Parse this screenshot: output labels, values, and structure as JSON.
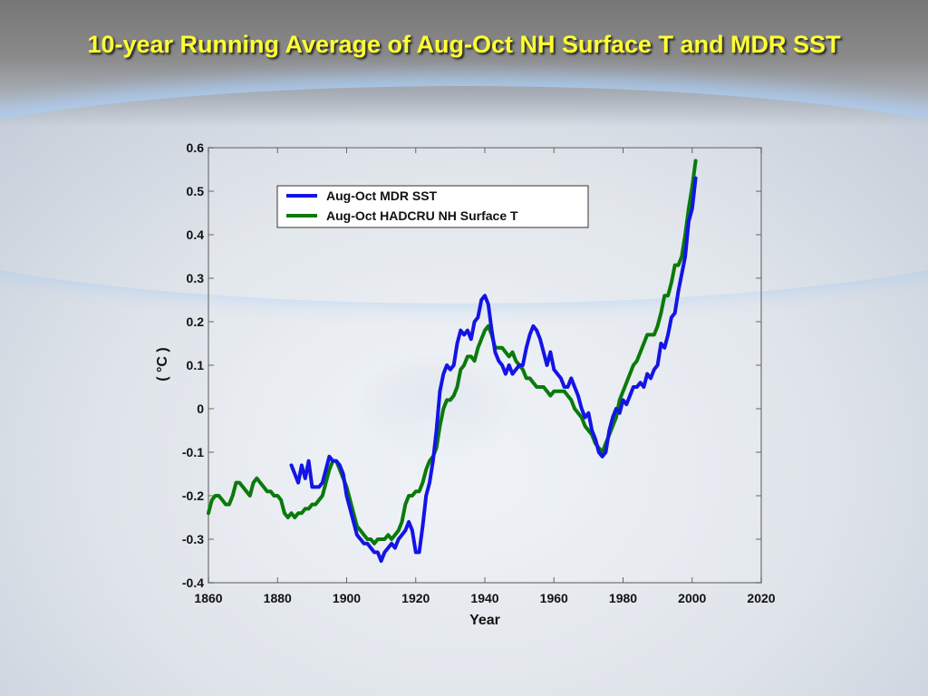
{
  "slide": {
    "title": "10-year Running Average of Aug-Oct NH Surface T and MDR SST"
  },
  "colors": {
    "title": "#ffff33",
    "mdr_sst": "#1414e6",
    "hadcru": "#0a7a0a"
  },
  "chart_data": {
    "type": "line",
    "title": "",
    "xlabel": "Year",
    "ylabel": "( °C )",
    "xlim": [
      1860,
      2020
    ],
    "ylim": [
      -0.4,
      0.6
    ],
    "xticks": [
      "1860",
      "1880",
      "1900",
      "1920",
      "1940",
      "1960",
      "1980",
      "2000",
      "2020"
    ],
    "yticks": [
      "0.6",
      "0.5",
      "0.4",
      "0.3",
      "0.2",
      "0.1",
      "0",
      "-0.1",
      "-0.2",
      "-0.3",
      "-0.4"
    ],
    "legend_position": "top-left",
    "grid": false,
    "series": [
      {
        "name": "Aug-Oct MDR SST",
        "color": "#1414e6",
        "points": [
          [
            1884,
            -0.13
          ],
          [
            1885,
            -0.15
          ],
          [
            1886,
            -0.17
          ],
          [
            1887,
            -0.13
          ],
          [
            1888,
            -0.16
          ],
          [
            1889,
            -0.12
          ],
          [
            1890,
            -0.18
          ],
          [
            1892,
            -0.18
          ],
          [
            1893,
            -0.17
          ],
          [
            1894,
            -0.14
          ],
          [
            1895,
            -0.11
          ],
          [
            1896,
            -0.12
          ],
          [
            1897,
            -0.12
          ],
          [
            1898,
            -0.13
          ],
          [
            1899,
            -0.15
          ],
          [
            1900,
            -0.2
          ],
          [
            1901,
            -0.23
          ],
          [
            1902,
            -0.26
          ],
          [
            1903,
            -0.29
          ],
          [
            1904,
            -0.3
          ],
          [
            1905,
            -0.31
          ],
          [
            1906,
            -0.31
          ],
          [
            1907,
            -0.32
          ],
          [
            1908,
            -0.33
          ],
          [
            1909,
            -0.33
          ],
          [
            1910,
            -0.35
          ],
          [
            1911,
            -0.33
          ],
          [
            1912,
            -0.32
          ],
          [
            1913,
            -0.31
          ],
          [
            1914,
            -0.32
          ],
          [
            1915,
            -0.3
          ],
          [
            1916,
            -0.29
          ],
          [
            1917,
            -0.28
          ],
          [
            1918,
            -0.26
          ],
          [
            1919,
            -0.28
          ],
          [
            1920,
            -0.33
          ],
          [
            1921,
            -0.33
          ],
          [
            1922,
            -0.27
          ],
          [
            1923,
            -0.2
          ],
          [
            1924,
            -0.17
          ],
          [
            1925,
            -0.12
          ],
          [
            1926,
            -0.05
          ],
          [
            1927,
            0.04
          ],
          [
            1928,
            0.08
          ],
          [
            1929,
            0.1
          ],
          [
            1930,
            0.09
          ],
          [
            1931,
            0.1
          ],
          [
            1932,
            0.15
          ],
          [
            1933,
            0.18
          ],
          [
            1934,
            0.17
          ],
          [
            1935,
            0.18
          ],
          [
            1936,
            0.16
          ],
          [
            1937,
            0.2
          ],
          [
            1938,
            0.21
          ],
          [
            1939,
            0.25
          ],
          [
            1940,
            0.26
          ],
          [
            1941,
            0.24
          ],
          [
            1942,
            0.18
          ],
          [
            1943,
            0.13
          ],
          [
            1944,
            0.11
          ],
          [
            1945,
            0.1
          ],
          [
            1946,
            0.08
          ],
          [
            1947,
            0.1
          ],
          [
            1948,
            0.08
          ],
          [
            1949,
            0.09
          ],
          [
            1950,
            0.1
          ],
          [
            1951,
            0.1
          ],
          [
            1952,
            0.14
          ],
          [
            1953,
            0.17
          ],
          [
            1954,
            0.19
          ],
          [
            1955,
            0.18
          ],
          [
            1956,
            0.16
          ],
          [
            1957,
            0.13
          ],
          [
            1958,
            0.1
          ],
          [
            1959,
            0.13
          ],
          [
            1960,
            0.09
          ],
          [
            1961,
            0.08
          ],
          [
            1962,
            0.07
          ],
          [
            1963,
            0.05
          ],
          [
            1964,
            0.05
          ],
          [
            1965,
            0.07
          ],
          [
            1966,
            0.05
          ],
          [
            1967,
            0.03
          ],
          [
            1968,
            0.0
          ],
          [
            1969,
            -0.02
          ],
          [
            1970,
            -0.01
          ],
          [
            1971,
            -0.05
          ],
          [
            1972,
            -0.07
          ],
          [
            1973,
            -0.1
          ],
          [
            1974,
            -0.11
          ],
          [
            1975,
            -0.1
          ],
          [
            1976,
            -0.05
          ],
          [
            1977,
            -0.02
          ],
          [
            1978,
            0.0
          ],
          [
            1979,
            -0.01
          ],
          [
            1980,
            0.02
          ],
          [
            1981,
            0.01
          ],
          [
            1982,
            0.03
          ],
          [
            1983,
            0.05
          ],
          [
            1984,
            0.05
          ],
          [
            1985,
            0.06
          ],
          [
            1986,
            0.05
          ],
          [
            1987,
            0.08
          ],
          [
            1988,
            0.07
          ],
          [
            1989,
            0.09
          ],
          [
            1990,
            0.1
          ],
          [
            1991,
            0.15
          ],
          [
            1992,
            0.14
          ],
          [
            1993,
            0.17
          ],
          [
            1994,
            0.21
          ],
          [
            1995,
            0.22
          ],
          [
            1996,
            0.27
          ],
          [
            1997,
            0.31
          ],
          [
            1998,
            0.35
          ],
          [
            1999,
            0.43
          ],
          [
            2000,
            0.46
          ],
          [
            2001,
            0.53
          ]
        ]
      },
      {
        "name": "Aug-Oct HADCRU NH Surface T",
        "color": "#0a7a0a",
        "points": [
          [
            1860,
            -0.24
          ],
          [
            1861,
            -0.21
          ],
          [
            1862,
            -0.2
          ],
          [
            1863,
            -0.2
          ],
          [
            1864,
            -0.21
          ],
          [
            1865,
            -0.22
          ],
          [
            1866,
            -0.22
          ],
          [
            1867,
            -0.2
          ],
          [
            1868,
            -0.17
          ],
          [
            1869,
            -0.17
          ],
          [
            1870,
            -0.18
          ],
          [
            1871,
            -0.19
          ],
          [
            1872,
            -0.2
          ],
          [
            1873,
            -0.17
          ],
          [
            1874,
            -0.16
          ],
          [
            1875,
            -0.17
          ],
          [
            1876,
            -0.18
          ],
          [
            1877,
            -0.19
          ],
          [
            1878,
            -0.19
          ],
          [
            1879,
            -0.2
          ],
          [
            1880,
            -0.2
          ],
          [
            1881,
            -0.21
          ],
          [
            1882,
            -0.24
          ],
          [
            1883,
            -0.25
          ],
          [
            1884,
            -0.24
          ],
          [
            1885,
            -0.25
          ],
          [
            1886,
            -0.24
          ],
          [
            1887,
            -0.24
          ],
          [
            1888,
            -0.23
          ],
          [
            1889,
            -0.23
          ],
          [
            1890,
            -0.22
          ],
          [
            1891,
            -0.22
          ],
          [
            1892,
            -0.21
          ],
          [
            1893,
            -0.2
          ],
          [
            1894,
            -0.17
          ],
          [
            1895,
            -0.14
          ],
          [
            1896,
            -0.12
          ],
          [
            1897,
            -0.12
          ],
          [
            1898,
            -0.14
          ],
          [
            1899,
            -0.16
          ],
          [
            1900,
            -0.18
          ],
          [
            1901,
            -0.21
          ],
          [
            1902,
            -0.24
          ],
          [
            1903,
            -0.27
          ],
          [
            1904,
            -0.28
          ],
          [
            1905,
            -0.29
          ],
          [
            1906,
            -0.3
          ],
          [
            1907,
            -0.3
          ],
          [
            1908,
            -0.31
          ],
          [
            1909,
            -0.3
          ],
          [
            1910,
            -0.3
          ],
          [
            1911,
            -0.3
          ],
          [
            1912,
            -0.29
          ],
          [
            1913,
            -0.3
          ],
          [
            1914,
            -0.29
          ],
          [
            1915,
            -0.28
          ],
          [
            1916,
            -0.26
          ],
          [
            1917,
            -0.22
          ],
          [
            1918,
            -0.2
          ],
          [
            1919,
            -0.2
          ],
          [
            1920,
            -0.19
          ],
          [
            1921,
            -0.19
          ],
          [
            1922,
            -0.17
          ],
          [
            1923,
            -0.14
          ],
          [
            1924,
            -0.12
          ],
          [
            1925,
            -0.11
          ],
          [
            1926,
            -0.09
          ],
          [
            1927,
            -0.04
          ],
          [
            1928,
            0.0
          ],
          [
            1929,
            0.02
          ],
          [
            1930,
            0.02
          ],
          [
            1931,
            0.03
          ],
          [
            1932,
            0.05
          ],
          [
            1933,
            0.09
          ],
          [
            1934,
            0.1
          ],
          [
            1935,
            0.12
          ],
          [
            1936,
            0.12
          ],
          [
            1937,
            0.11
          ],
          [
            1938,
            0.14
          ],
          [
            1939,
            0.16
          ],
          [
            1940,
            0.18
          ],
          [
            1941,
            0.19
          ],
          [
            1942,
            0.17
          ],
          [
            1943,
            0.14
          ],
          [
            1944,
            0.14
          ],
          [
            1945,
            0.14
          ],
          [
            1946,
            0.13
          ],
          [
            1947,
            0.12
          ],
          [
            1948,
            0.13
          ],
          [
            1949,
            0.11
          ],
          [
            1950,
            0.1
          ],
          [
            1951,
            0.09
          ],
          [
            1952,
            0.07
          ],
          [
            1953,
            0.07
          ],
          [
            1954,
            0.06
          ],
          [
            1955,
            0.05
          ],
          [
            1956,
            0.05
          ],
          [
            1957,
            0.05
          ],
          [
            1958,
            0.04
          ],
          [
            1959,
            0.03
          ],
          [
            1960,
            0.04
          ],
          [
            1961,
            0.04
          ],
          [
            1962,
            0.04
          ],
          [
            1963,
            0.04
          ],
          [
            1964,
            0.03
          ],
          [
            1965,
            0.02
          ],
          [
            1966,
            0.0
          ],
          [
            1967,
            -0.01
          ],
          [
            1968,
            -0.02
          ],
          [
            1969,
            -0.04
          ],
          [
            1970,
            -0.05
          ],
          [
            1971,
            -0.06
          ],
          [
            1972,
            -0.08
          ],
          [
            1973,
            -0.09
          ],
          [
            1974,
            -0.1
          ],
          [
            1975,
            -0.08
          ],
          [
            1976,
            -0.06
          ],
          [
            1977,
            -0.04
          ],
          [
            1978,
            -0.02
          ],
          [
            1979,
            0.02
          ],
          [
            1980,
            0.04
          ],
          [
            1981,
            0.06
          ],
          [
            1982,
            0.08
          ],
          [
            1983,
            0.1
          ],
          [
            1984,
            0.11
          ],
          [
            1985,
            0.13
          ],
          [
            1986,
            0.15
          ],
          [
            1987,
            0.17
          ],
          [
            1988,
            0.17
          ],
          [
            1989,
            0.17
          ],
          [
            1990,
            0.19
          ],
          [
            1991,
            0.22
          ],
          [
            1992,
            0.26
          ],
          [
            1993,
            0.26
          ],
          [
            1994,
            0.29
          ],
          [
            1995,
            0.33
          ],
          [
            1996,
            0.33
          ],
          [
            1997,
            0.35
          ],
          [
            1998,
            0.4
          ],
          [
            1999,
            0.46
          ],
          [
            2000,
            0.51
          ],
          [
            2001,
            0.57
          ]
        ]
      }
    ]
  }
}
